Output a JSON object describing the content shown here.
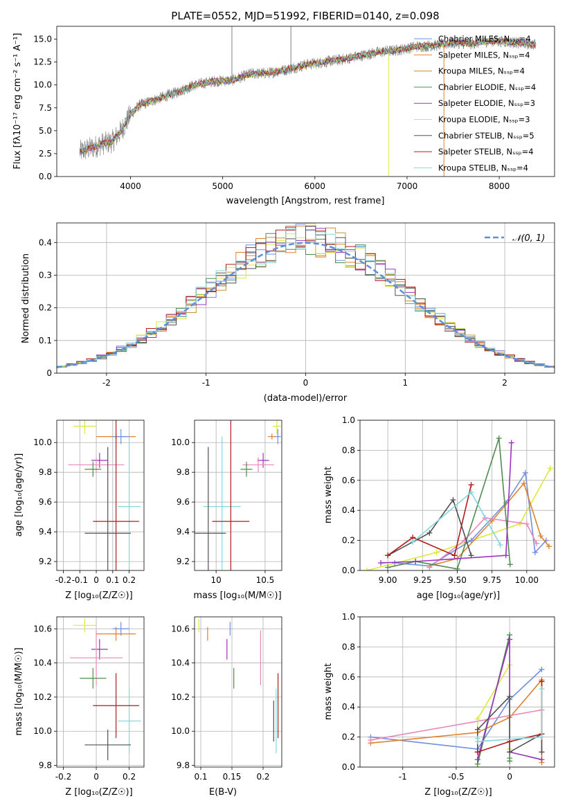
{
  "colors": {
    "chabrier_miles": "#6e8fe0",
    "salpeter_miles": "#e0802a",
    "kroupa_miles": "#c89030",
    "chabrier_elodie": "#4f8a4f",
    "salpeter_elodie": "#9b30c0",
    "kroupa_elodie": "#dce838",
    "chabrier_stelib": "#505050",
    "salpeter_stelib": "#b21a1a",
    "kroupa_stelib": "#80d8dc",
    "pink": "#e888b8",
    "data": "#808080",
    "gaussian": "#5b8fdc"
  },
  "chart_data": [
    {
      "id": "spectrum",
      "type": "line",
      "title": "PLATE=0552, MJD=51992, FIBERID=0140, z=0.098",
      "xlabel": "wavelength [Angstrom, rest frame]",
      "ylabel": "Flux [fλ10⁻¹⁷ erg cm⁻² s⁻¹ A⁻¹]",
      "xlim": [
        3200,
        8600
      ],
      "ylim": [
        0,
        16.4
      ],
      "xticks": [
        4000,
        5000,
        6000,
        7000,
        8000
      ],
      "yticks": [
        0.0,
        2.5,
        5.0,
        7.5,
        10.0,
        12.5,
        15.0
      ],
      "grid": false,
      "legend_position": "top-right",
      "legend": [
        {
          "label": "Chabrier MILES, N_SSP=4",
          "color_key": "chabrier_miles"
        },
        {
          "label": "Salpeter MILES, N_SSP=4",
          "color_key": "salpeter_miles"
        },
        {
          "label": "Kroupa MILES, N_SSP=4",
          "color_key": "kroupa_miles"
        },
        {
          "label": "Chabrier ELODIE, N_SSP=4",
          "color_key": "chabrier_elodie"
        },
        {
          "label": "Salpeter ELODIE, N_SSP=3",
          "color_key": "salpeter_elodie"
        },
        {
          "label": "Kroupa ELODIE, N_SSP=3",
          "color_key": "kroupa_elodie"
        },
        {
          "label": "Chabrier STELIB, N_SSP=5",
          "color_key": "chabrier_stelib"
        },
        {
          "label": "Salpeter STELIB, N_SSP=4",
          "color_key": "salpeter_stelib"
        },
        {
          "label": "Kroupa STELIB, N_SSP=4",
          "color_key": "kroupa_stelib"
        }
      ],
      "continuum": {
        "x": [
          3450,
          3600,
          3700,
          3800,
          3900,
          4000,
          4100,
          4300,
          4500,
          4700,
          4900,
          5100,
          5300,
          5500,
          5700,
          5900,
          6100,
          6300,
          6500,
          6700,
          6900,
          7100,
          7300,
          7500,
          7700,
          7900,
          8100,
          8300,
          8400
        ],
        "y": [
          2.7,
          3.2,
          3.6,
          3.8,
          5.0,
          6.8,
          7.8,
          8.5,
          9.2,
          10.0,
          10.4,
          10.5,
          11.2,
          11.3,
          11.7,
          12.2,
          12.5,
          12.8,
          13.2,
          13.6,
          13.8,
          14.2,
          14.3,
          14.6,
          14.5,
          14.8,
          14.7,
          14.5,
          14.4
        ]
      }
    },
    {
      "id": "residuals",
      "type": "histogram",
      "xlabel": "(data-model)/error",
      "ylabel": "Normed distribution",
      "xlim": [
        -2.5,
        2.5
      ],
      "ylim": [
        0,
        0.46
      ],
      "xticks": [
        -2,
        -1,
        0,
        1,
        2
      ],
      "yticks": [
        0.0,
        0.1,
        0.2,
        0.3,
        0.4
      ],
      "grid": true,
      "legend_position": "top-right",
      "legend": [
        {
          "label": "𝒩(0, 1)",
          "color_key": "gaussian"
        }
      ],
      "gaussian": {
        "mean": 0,
        "sigma": 1
      }
    },
    {
      "id": "age_vs_Z",
      "type": "errorbar",
      "xlabel": "Z [log₁₀(Z/Z☉)]",
      "ylabel": "age  [log₁₀(age/yr)]",
      "xlim": [
        -0.24,
        0.29
      ],
      "ylim": [
        9.14,
        10.15
      ],
      "xticks": [
        -0.2,
        -0.1,
        0.0,
        0.1,
        0.2
      ],
      "yticks": [
        9.2,
        9.4,
        9.6,
        9.8,
        10.0
      ],
      "grid": true,
      "points": [
        {
          "c": "kroupa_elodie",
          "x": -0.07,
          "xerr": 0.07,
          "y": 10.11,
          "yerr": 0.05
        },
        {
          "c": "salpeter_miles",
          "x": 0.12,
          "xerr": 0.12,
          "y": 10.04,
          "yerr": 0.02
        },
        {
          "c": "chabrier_miles",
          "x": 0.15,
          "xerr": 0.05,
          "y": 10.04,
          "yerr": 0.05
        },
        {
          "c": "salpeter_elodie",
          "x": 0.02,
          "xerr": 0.05,
          "y": 9.88,
          "yerr": 0.05
        },
        {
          "c": "pink",
          "x": 0.0,
          "xerr": 0.17,
          "y": 9.85,
          "yerr": 0.05
        },
        {
          "c": "chabrier_elodie",
          "x": -0.02,
          "xerr": 0.05,
          "y": 9.82,
          "yerr": 0.05
        },
        {
          "c": "kroupa_stelib",
          "x": 0.2,
          "xerr": 0.07,
          "y": 9.57,
          "yerr": 0.47
        },
        {
          "c": "salpeter_stelib",
          "x": 0.12,
          "xerr": 0.14,
          "y": 9.47,
          "yerr": 0.7
        },
        {
          "c": "chabrier_stelib",
          "x": 0.07,
          "xerr": 0.14,
          "y": 9.39,
          "yerr": 0.58
        }
      ]
    },
    {
      "id": "age_vs_mass",
      "type": "errorbar",
      "xlabel": "mass [log₁₀(M/M☉)]",
      "ylabel": "",
      "xlim": [
        9.78,
        10.67
      ],
      "ylim": [
        9.14,
        10.15
      ],
      "xticks": [
        10.0,
        10.5
      ],
      "yticks": [
        9.2,
        9.4,
        9.6,
        9.8,
        10.0
      ],
      "grid": true,
      "points": [
        {
          "c": "kroupa_elodie",
          "x": 10.62,
          "xerr": 0.04,
          "y": 10.11,
          "yerr": 0.05
        },
        {
          "c": "salpeter_miles",
          "x": 10.57,
          "xerr": 0.04,
          "y": 10.04,
          "yerr": 0.02
        },
        {
          "c": "chabrier_miles",
          "x": 10.63,
          "xerr": 0.03,
          "y": 10.04,
          "yerr": 0.05
        },
        {
          "c": "salpeter_elodie",
          "x": 10.48,
          "xerr": 0.06,
          "y": 9.88,
          "yerr": 0.05
        },
        {
          "c": "pink",
          "x": 10.43,
          "xerr": 0.16,
          "y": 9.85,
          "yerr": 0.05
        },
        {
          "c": "chabrier_elodie",
          "x": 10.31,
          "xerr": 0.06,
          "y": 9.82,
          "yerr": 0.05
        },
        {
          "c": "kroupa_stelib",
          "x": 10.06,
          "xerr": 0.19,
          "y": 9.57,
          "yerr": 0.47
        },
        {
          "c": "salpeter_stelib",
          "x": 10.15,
          "xerr": 0.19,
          "y": 9.47,
          "yerr": 0.7
        },
        {
          "c": "chabrier_stelib",
          "x": 9.92,
          "xerr": 0.18,
          "y": 9.39,
          "yerr": 0.58
        }
      ]
    },
    {
      "id": "weight_vs_age",
      "type": "line",
      "xlabel": "age  [log₁₀(age/yr)]",
      "ylabel": "mass weight",
      "xlim": [
        8.8,
        10.2
      ],
      "ylim": [
        0,
        1.0
      ],
      "xticks": [
        9.0,
        9.25,
        9.5,
        9.75,
        10.0
      ],
      "xtick_labels": [
        "9.00",
        "9.25",
        "9.50",
        "9.75",
        "10.00"
      ],
      "yticks": [
        0.0,
        0.2,
        0.4,
        0.6,
        0.8,
        1.0
      ],
      "grid": true,
      "series": [
        {
          "c": "kroupa_elodie",
          "x": [
            8.85,
            9.35,
            9.95,
            10.17
          ],
          "y": [
            0.0,
            0.12,
            0.31,
            0.68
          ]
        },
        {
          "c": "chabrier_miles",
          "x": [
            9.05,
            9.3,
            9.6,
            9.85,
            9.99,
            10.06,
            10.14
          ],
          "y": [
            0.05,
            0.03,
            0.2,
            0.45,
            0.65,
            0.12,
            0.2
          ]
        },
        {
          "c": "salpeter_miles",
          "x": [
            9.3,
            9.5,
            9.75,
            9.98,
            10.1,
            10.16
          ],
          "y": [
            0.03,
            0.08,
            0.33,
            0.58,
            0.23,
            0.16
          ]
        },
        {
          "c": "pink",
          "x": [
            9.3,
            9.55,
            9.7,
            10.0,
            10.07
          ],
          "y": [
            0.02,
            0.2,
            0.35,
            0.31,
            0.18
          ]
        },
        {
          "c": "chabrier_elodie",
          "x": [
            9.0,
            9.2,
            9.5,
            9.8,
            9.88
          ],
          "y": [
            0.02,
            0.06,
            0.01,
            0.88,
            0.04
          ]
        },
        {
          "c": "salpeter_elodie",
          "x": [
            8.95,
            9.2,
            9.85,
            9.89
          ],
          "y": [
            0.05,
            0.06,
            0.1,
            0.85
          ]
        },
        {
          "c": "chabrier_stelib",
          "x": [
            9.0,
            9.3,
            9.47,
            9.6
          ],
          "y": [
            0.1,
            0.25,
            0.47,
            0.1
          ]
        },
        {
          "c": "salpeter_stelib",
          "x": [
            9.0,
            9.18,
            9.48,
            9.6
          ],
          "y": [
            0.1,
            0.22,
            0.1,
            0.57
          ]
        },
        {
          "c": "kroupa_stelib",
          "x": [
            9.18,
            9.6,
            9.81
          ],
          "y": [
            0.19,
            0.52,
            0.17
          ]
        }
      ]
    },
    {
      "id": "mass_vs_Z",
      "type": "errorbar",
      "xlabel": "Z [log₁₀(Z/Z☉)]",
      "ylabel": "mass [log₁₀(M/M☉)]",
      "xlim": [
        -0.24,
        0.29
      ],
      "ylim": [
        9.79,
        10.67
      ],
      "xticks": [
        -0.2,
        0.0,
        0.2
      ],
      "yticks": [
        9.8,
        10.0,
        10.2,
        10.4,
        10.6
      ],
      "grid": true,
      "points": [
        {
          "c": "kroupa_elodie",
          "x": -0.07,
          "xerr": 0.07,
          "y": 10.62,
          "yerr": 0.04
        },
        {
          "c": "salpeter_miles",
          "x": 0.12,
          "xerr": 0.12,
          "y": 10.57,
          "yerr": 0.04
        },
        {
          "c": "chabrier_miles",
          "x": 0.15,
          "xerr": 0.05,
          "y": 10.6,
          "yerr": 0.04
        },
        {
          "c": "salpeter_elodie",
          "x": 0.02,
          "xerr": 0.05,
          "y": 10.48,
          "yerr": 0.06
        },
        {
          "c": "pink",
          "x": 0.0,
          "xerr": 0.16,
          "y": 10.43,
          "yerr": 0.16
        },
        {
          "c": "chabrier_elodie",
          "x": -0.02,
          "xerr": 0.08,
          "y": 10.31,
          "yerr": 0.06
        },
        {
          "c": "kroupa_stelib",
          "x": 0.2,
          "xerr": 0.07,
          "y": 10.06,
          "yerr": 0.19
        },
        {
          "c": "salpeter_stelib",
          "x": 0.12,
          "xerr": 0.14,
          "y": 10.15,
          "yerr": 0.19
        },
        {
          "c": "chabrier_stelib",
          "x": 0.07,
          "xerr": 0.14,
          "y": 9.92,
          "yerr": 0.09
        }
      ]
    },
    {
      "id": "mass_vs_ebv",
      "type": "errorbar",
      "xlabel": "E(B-V)",
      "ylabel": "",
      "xlim": [
        0.09,
        0.23
      ],
      "ylim": [
        9.79,
        10.67
      ],
      "xticks": [
        0.1,
        0.15,
        0.2
      ],
      "yticks": [
        9.8,
        10.0,
        10.2,
        10.4,
        10.6
      ],
      "grid": true,
      "points": [
        {
          "c": "kroupa_elodie",
          "x": 0.097,
          "xerr": 0,
          "y": 10.62,
          "yerr": 0.04
        },
        {
          "c": "salpeter_miles",
          "x": 0.111,
          "xerr": 0,
          "y": 10.57,
          "yerr": 0.04
        },
        {
          "c": "chabrier_miles",
          "x": 0.147,
          "xerr": 0,
          "y": 10.6,
          "yerr": 0.04
        },
        {
          "c": "salpeter_elodie",
          "x": 0.142,
          "xerr": 0,
          "y": 10.48,
          "yerr": 0.06
        },
        {
          "c": "pink",
          "x": 0.196,
          "xerr": 0,
          "y": 10.43,
          "yerr": 0.16
        },
        {
          "c": "chabrier_elodie",
          "x": 0.153,
          "xerr": 0,
          "y": 10.31,
          "yerr": 0.06
        },
        {
          "c": "kroupa_stelib",
          "x": 0.221,
          "xerr": 0,
          "y": 10.06,
          "yerr": 0.19
        },
        {
          "c": "salpeter_stelib",
          "x": 0.224,
          "xerr": 0,
          "y": 10.15,
          "yerr": 0.19
        },
        {
          "c": "chabrier_stelib",
          "x": 0.217,
          "xerr": 0,
          "y": 10.06,
          "yerr": 0.12
        }
      ]
    },
    {
      "id": "weight_vs_Z",
      "type": "line",
      "xlabel": "Z [log₁₀(Z/Z☉)]",
      "ylabel": "mass weight",
      "xlim": [
        -1.4,
        0.42
      ],
      "ylim": [
        0,
        1.0
      ],
      "xticks": [
        -1.0,
        -0.5,
        0.0
      ],
      "yticks": [
        0.0,
        0.2,
        0.4,
        0.6,
        0.8,
        1.0
      ],
      "grid": true,
      "series": [
        {
          "c": "chabrier_miles",
          "x": [
            -1.3,
            -0.3,
            0.0,
            0.3
          ],
          "y": [
            0.2,
            0.12,
            0.45,
            0.65
          ]
        },
        {
          "c": "salpeter_miles",
          "x": [
            -1.3,
            -0.3,
            0.0,
            0.3,
            0.3
          ],
          "y": [
            0.16,
            0.23,
            0.33,
            0.58,
            0.03
          ]
        },
        {
          "c": "pink",
          "x": [
            -1.3,
            0.3
          ],
          "y": [
            0.18,
            0.38
          ]
        },
        {
          "c": "kroupa_elodie",
          "x": [
            -0.3,
            -0.3,
            0.0,
            0.0
          ],
          "y": [
            0.0,
            0.32,
            0.68,
            0.12
          ]
        },
        {
          "c": "chabrier_elodie",
          "x": [
            -0.3,
            0.0,
            0.0,
            0.0
          ],
          "y": [
            0.02,
            0.88,
            0.04,
            0.06
          ]
        },
        {
          "c": "salpeter_elodie",
          "x": [
            -0.3,
            0.0,
            0.0,
            0.3
          ],
          "y": [
            0.05,
            0.85,
            0.1,
            0.05
          ]
        },
        {
          "c": "chabrier_stelib",
          "x": [
            -0.3,
            -0.3,
            0.0,
            0.0,
            0.3,
            0.3
          ],
          "y": [
            0.1,
            0.25,
            0.47,
            0.1,
            0.22,
            0.1
          ]
        },
        {
          "c": "salpeter_stelib",
          "x": [
            -0.3,
            0.0,
            0.3,
            0.3
          ],
          "y": [
            0.1,
            0.17,
            0.22,
            0.57
          ]
        },
        {
          "c": "kroupa_stelib",
          "x": [
            -0.3,
            -0.3,
            0.3,
            0.3
          ],
          "y": [
            0.19,
            0.17,
            0.2,
            0.52
          ]
        }
      ]
    }
  ]
}
